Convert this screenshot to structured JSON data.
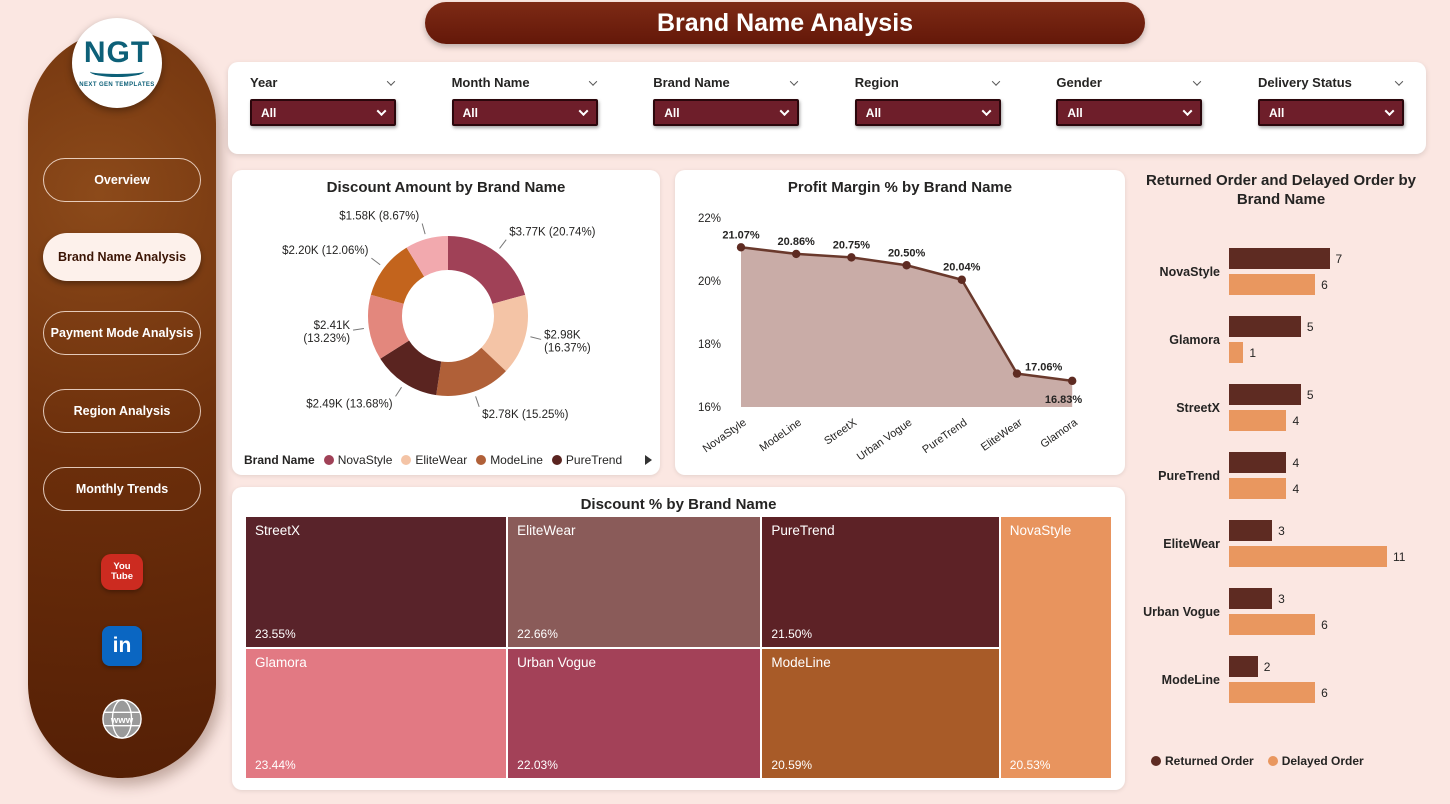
{
  "header": {
    "title": "Brand Name Analysis"
  },
  "sidebar": {
    "logo_text": "NGT",
    "logo_subtext": "NEXT GEN TEMPLATES",
    "nav": [
      {
        "label": "Overview",
        "active": false
      },
      {
        "label": "Brand Name Analysis",
        "active": true
      },
      {
        "label": "Payment Mode Analysis",
        "active": false
      },
      {
        "label": "Region Analysis",
        "active": false
      },
      {
        "label": "Monthly Trends",
        "active": false
      }
    ],
    "social": [
      {
        "icon": "youtube-icon",
        "text": "You Tube"
      },
      {
        "icon": "linkedin-icon",
        "text": "in"
      },
      {
        "icon": "globe-icon",
        "text": "www"
      }
    ]
  },
  "filters": {
    "items": [
      {
        "label": "Year",
        "value": "All"
      },
      {
        "label": "Month Name",
        "value": "All"
      },
      {
        "label": "Brand Name",
        "value": "All"
      },
      {
        "label": "Region",
        "value": "All"
      },
      {
        "label": "Gender",
        "value": "All"
      },
      {
        "label": "Delivery Status",
        "value": "All"
      }
    ]
  },
  "chart_data": [
    {
      "type": "pie",
      "title": "Discount Amount by Brand Name",
      "legend_title": "Brand Name",
      "legend": [
        "NovaStyle",
        "EliteWear",
        "ModeLine",
        "PureTrend"
      ],
      "slices": [
        {
          "label": "$3.77K (20.74%)",
          "value": 20.74,
          "color": "#A04157"
        },
        {
          "label": "$2.98K (16.37%)",
          "value": 16.37,
          "color": "#F4C4A6"
        },
        {
          "label": "$2.78K (15.25%)",
          "value": 15.25,
          "color": "#B06038"
        },
        {
          "label": "$2.49K (13.68%)",
          "value": 13.68,
          "color": "#5A2420"
        },
        {
          "label": "$2.41K (13.23%)",
          "value": 13.23,
          "color": "#E3877D"
        },
        {
          "label": "$2.20K (12.06%)",
          "value": 12.06,
          "color": "#C3641D"
        },
        {
          "label": "$1.58K (8.67%)",
          "value": 8.67,
          "color": "#F2A9AE"
        }
      ]
    },
    {
      "type": "area",
      "title": "Profit Margin % by Brand Name",
      "categories": [
        "NovaStyle",
        "ModeLine",
        "StreetX",
        "Urban Vogue",
        "PureTrend",
        "EliteWear",
        "Glamora"
      ],
      "values": [
        21.07,
        20.86,
        20.75,
        20.5,
        20.04,
        17.06,
        16.83
      ],
      "labels": [
        "21.07%",
        "20.86%",
        "20.75%",
        "20.50%",
        "20.04%",
        "17.06%",
        "16.83%"
      ],
      "ylim": [
        16,
        22
      ],
      "yticks": [
        "22%",
        "20%",
        "18%",
        "16%"
      ],
      "fill_color": "#C9ACA7",
      "line_color": "#6A392C",
      "marker_color": "#5E2B22"
    },
    {
      "type": "bar",
      "title": "Returned Order and Delayed Order by Brand Name",
      "orientation": "horizontal",
      "categories": [
        "NovaStyle",
        "Glamora",
        "StreetX",
        "PureTrend",
        "EliteWear",
        "Urban Vogue",
        "ModeLine"
      ],
      "series": [
        {
          "name": "Returned Order",
          "color": "#5E2B22",
          "values": [
            7,
            5,
            5,
            4,
            3,
            3,
            2
          ]
        },
        {
          "name": "Delayed Order",
          "color": "#E9975F",
          "values": [
            6,
            1,
            4,
            4,
            11,
            6,
            6
          ]
        }
      ],
      "xmax": 11
    },
    {
      "type": "treemap",
      "title": "Discount % by Brand Name",
      "tiles": [
        {
          "name": "StreetX",
          "value": "23.55%",
          "color": "#59232A"
        },
        {
          "name": "EliteWear",
          "value": "22.66%",
          "color": "#8A5B59"
        },
        {
          "name": "PureTrend",
          "value": "21.50%",
          "color": "#5D2226"
        },
        {
          "name": "NovaStyle",
          "value": "20.53%",
          "color": "#E8945E"
        },
        {
          "name": "Glamora",
          "value": "23.44%",
          "color": "#E27983"
        },
        {
          "name": "Urban Vogue",
          "value": "22.03%",
          "color": "#A34158"
        },
        {
          "name": "ModeLine",
          "value": "20.59%",
          "color": "#A85B28"
        }
      ]
    }
  ],
  "colors": {
    "page_bg": "#FBE7E2",
    "sidebar": "#5F2507",
    "banner": "#6E1E0C",
    "filter_select_bg": "#6E1E2A",
    "active_nav_bg": "#FDF1EB"
  }
}
